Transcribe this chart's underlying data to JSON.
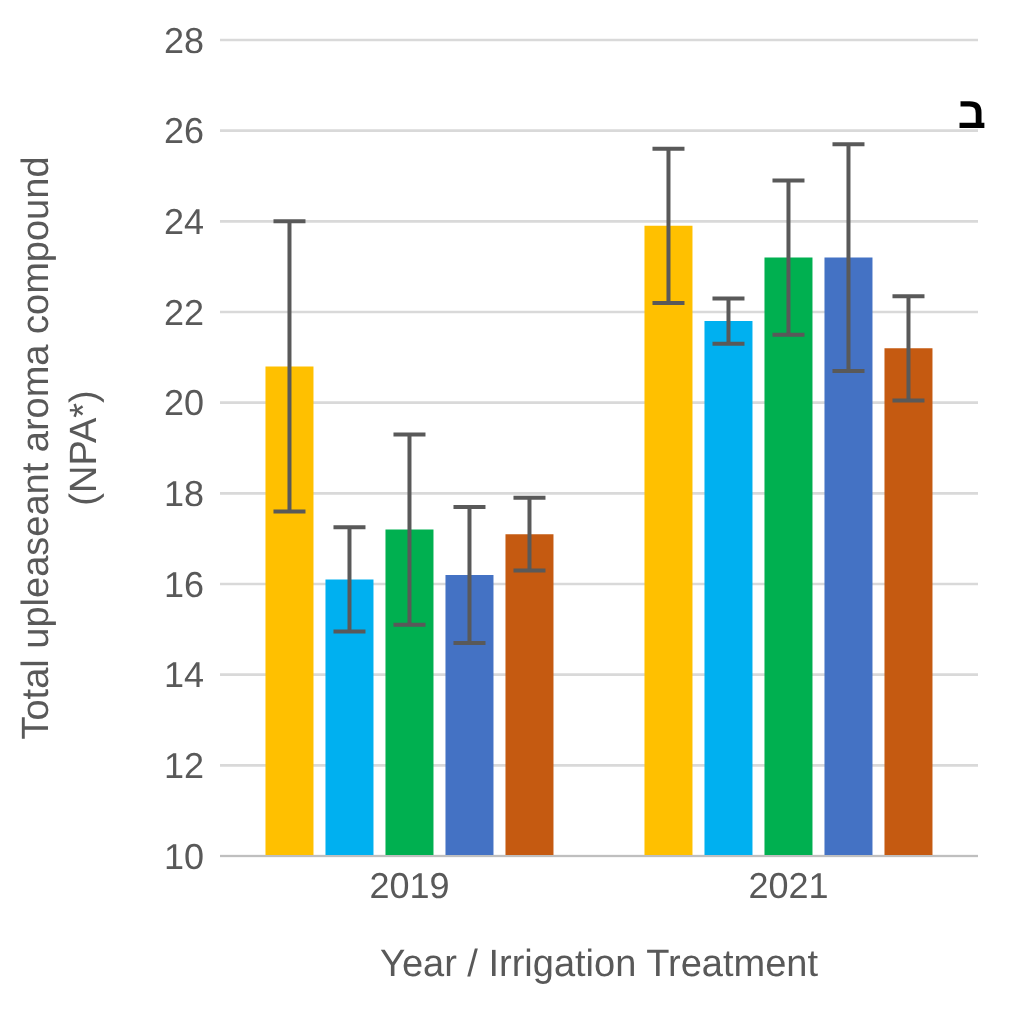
{
  "chart_data": {
    "type": "bar",
    "categories": [
      "2019",
      "2021"
    ],
    "xlabel": "Year / Irrigation Treatment",
    "ylabel": "Total upleaseant aroma compound (NPA*)",
    "series": [
      {
        "color": "#ffc000",
        "values": [
          20.8,
          23.9
        ],
        "errors": [
          3.2,
          1.7
        ]
      },
      {
        "color": "#00b0f0",
        "values": [
          16.1,
          21.8
        ],
        "errors": [
          1.15,
          0.5
        ]
      },
      {
        "color": "#00b050",
        "values": [
          17.2,
          23.2
        ],
        "errors": [
          2.1,
          1.7
        ]
      },
      {
        "color": "#4472c4",
        "values": [
          16.2,
          23.2
        ],
        "errors": [
          1.5,
          2.5
        ]
      },
      {
        "color": "#c55a11",
        "values": [
          17.1,
          21.2
        ],
        "errors": [
          0.8,
          1.15
        ]
      }
    ],
    "ylim": [
      10,
      28
    ],
    "yticks": [
      10,
      12,
      14,
      16,
      18,
      20,
      22,
      24,
      26,
      28
    ],
    "grid": "y",
    "legend": false,
    "annotations": [
      "ב"
    ]
  }
}
